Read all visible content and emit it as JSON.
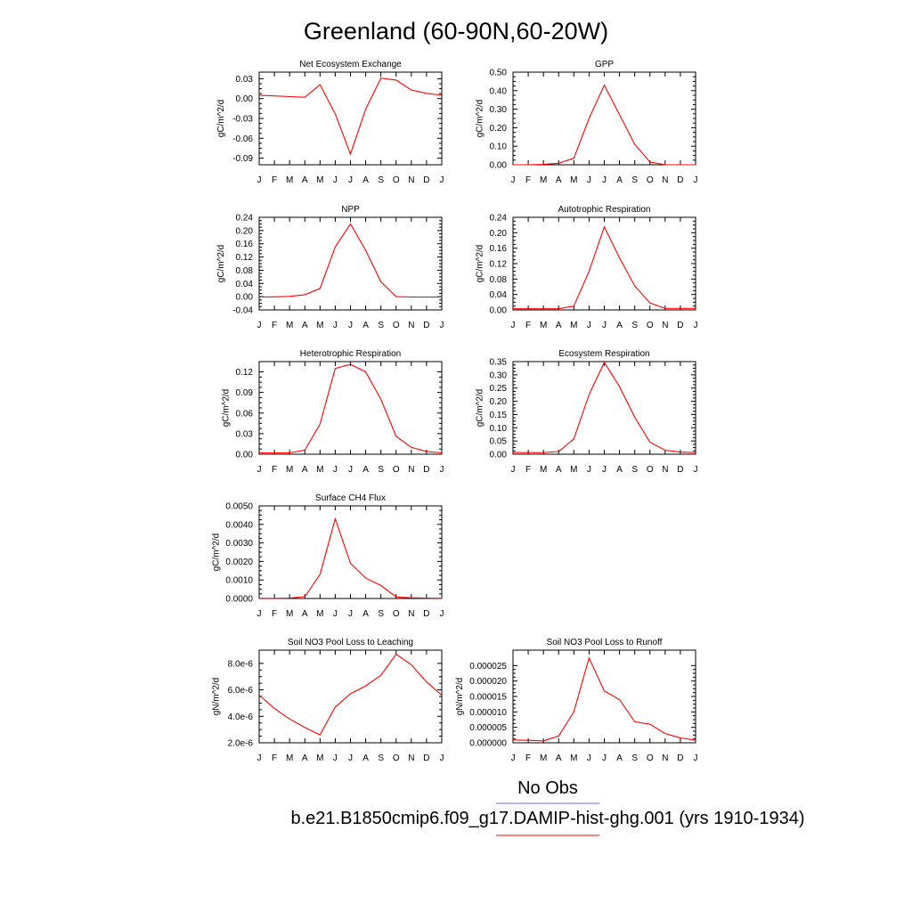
{
  "figure": {
    "title": "Greenland (60-90N,60-20W)"
  },
  "legend": {
    "entries": [
      {
        "label": "No Obs",
        "color": "#6b6bff"
      },
      {
        "label": "b.e21.B1850cmip6.f09_g17.DAMIP-hist-ghg.001 (yrs 1910-1934)",
        "color": "#ff0000"
      }
    ]
  },
  "series_color": "#ff0000",
  "chart_data": [
    {
      "type": "line",
      "title": "Net Ecosystem Exchange",
      "ylabel": "gC/m^2/d",
      "x": [
        "J",
        "F",
        "M",
        "A",
        "M",
        "J",
        "J",
        "A",
        "S",
        "O",
        "N",
        "D",
        "J"
      ],
      "values": [
        0.005,
        0.004,
        0.003,
        0.002,
        0.021,
        -0.023,
        -0.084,
        -0.016,
        0.031,
        0.028,
        0.013,
        0.008,
        0.005
      ],
      "ylim": [
        -0.1,
        0.04
      ],
      "yticks": [
        -0.09,
        -0.06,
        -0.03,
        0.0,
        0.03
      ],
      "ytick_labels": [
        "-0.09",
        "-0.06",
        "-0.03",
        "0.00",
        "0.03"
      ]
    },
    {
      "type": "line",
      "title": "GPP",
      "ylabel": "gC/m^2/d",
      "x": [
        "J",
        "F",
        "M",
        "A",
        "M",
        "J",
        "J",
        "A",
        "S",
        "O",
        "N",
        "D",
        "J"
      ],
      "values": [
        0.0,
        0.0,
        0.002,
        0.008,
        0.035,
        0.25,
        0.43,
        0.27,
        0.11,
        0.015,
        0.0,
        0.0,
        0.0
      ],
      "ylim": [
        0.0,
        0.5
      ],
      "yticks": [
        0.0,
        0.1,
        0.2,
        0.3,
        0.4,
        0.5
      ],
      "ytick_labels": [
        "0.00",
        "0.10",
        "0.20",
        "0.30",
        "0.40",
        "0.50"
      ]
    },
    {
      "type": "line",
      "title": "NPP",
      "ylabel": "gC/m^2/d",
      "x": [
        "J",
        "F",
        "M",
        "A",
        "M",
        "J",
        "J",
        "A",
        "S",
        "O",
        "N",
        "D",
        "J"
      ],
      "values": [
        -0.001,
        -0.0005,
        0.001,
        0.006,
        0.025,
        0.15,
        0.22,
        0.14,
        0.045,
        0.0,
        -0.001,
        -0.001,
        -0.001
      ],
      "ylim": [
        -0.04,
        0.24
      ],
      "yticks": [
        -0.04,
        0.0,
        0.04,
        0.08,
        0.12,
        0.16,
        0.2,
        0.24
      ],
      "ytick_labels": [
        "-0.04",
        "0.00",
        "0.04",
        "0.08",
        "0.12",
        "0.16",
        "0.20",
        "0.24"
      ]
    },
    {
      "type": "line",
      "title": "Autotrophic Respiration",
      "ylabel": "gC/m^2/d",
      "x": [
        "J",
        "F",
        "M",
        "A",
        "M",
        "J",
        "J",
        "A",
        "S",
        "O",
        "N",
        "D",
        "J"
      ],
      "values": [
        0.003,
        0.003,
        0.003,
        0.003,
        0.01,
        0.1,
        0.215,
        0.135,
        0.062,
        0.018,
        0.004,
        0.004,
        0.004
      ],
      "ylim": [
        0.0,
        0.24
      ],
      "yticks": [
        0.0,
        0.04,
        0.08,
        0.12,
        0.16,
        0.2,
        0.24
      ],
      "ytick_labels": [
        "0.00",
        "0.04",
        "0.08",
        "0.12",
        "0.16",
        "0.20",
        "0.24"
      ]
    },
    {
      "type": "line",
      "title": "Heterotrophic Respiration",
      "ylabel": "gC/m^2/d",
      "x": [
        "J",
        "F",
        "M",
        "A",
        "M",
        "J",
        "J",
        "A",
        "S",
        "O",
        "N",
        "D",
        "J"
      ],
      "values": [
        0.002,
        0.002,
        0.002,
        0.006,
        0.044,
        0.125,
        0.131,
        0.12,
        0.08,
        0.026,
        0.01,
        0.004,
        0.002
      ],
      "ylim": [
        0.0,
        0.135
      ],
      "yticks": [
        0.0,
        0.03,
        0.06,
        0.09,
        0.12
      ],
      "ytick_labels": [
        "0.00",
        "0.03",
        "0.06",
        "0.09",
        "0.12"
      ]
    },
    {
      "type": "line",
      "title": "Ecosystem Respiration",
      "ylabel": "gC/m^2/d",
      "x": [
        "J",
        "F",
        "M",
        "A",
        "M",
        "J",
        "J",
        "A",
        "S",
        "O",
        "N",
        "D",
        "J"
      ],
      "values": [
        0.006,
        0.006,
        0.006,
        0.01,
        0.058,
        0.225,
        0.347,
        0.255,
        0.14,
        0.045,
        0.015,
        0.008,
        0.006
      ],
      "ylim": [
        0.0,
        0.35
      ],
      "yticks": [
        0.0,
        0.05,
        0.1,
        0.15,
        0.2,
        0.25,
        0.3,
        0.35
      ],
      "ytick_labels": [
        "0.00",
        "0.05",
        "0.10",
        "0.15",
        "0.20",
        "0.25",
        "0.30",
        "0.35"
      ]
    },
    {
      "type": "line",
      "title": "Surface CH4 Flux",
      "ylabel": "gC/m^2/d",
      "x": [
        "J",
        "F",
        "M",
        "A",
        "M",
        "J",
        "J",
        "A",
        "S",
        "O",
        "N",
        "D",
        "J"
      ],
      "values": [
        1e-05,
        1e-05,
        2e-05,
        0.0001,
        0.0013,
        0.0043,
        0.0019,
        0.0011,
        0.0007,
        8e-05,
        4e-05,
        2e-05,
        1e-05
      ],
      "ylim": [
        0.0,
        0.005
      ],
      "yticks": [
        0.0,
        0.001,
        0.002,
        0.003,
        0.004,
        0.005
      ],
      "ytick_labels": [
        "0.0000",
        "0.0010",
        "0.0020",
        "0.0030",
        "0.0040",
        "0.0050"
      ]
    },
    {
      "type": "line",
      "title": "Soil NO3 Pool Loss to Leaching",
      "ylabel": "gN/m^2/d",
      "x": [
        "J",
        "F",
        "M",
        "A",
        "M",
        "J",
        "J",
        "A",
        "S",
        "O",
        "N",
        "D",
        "J"
      ],
      "values": [
        5.6e-06,
        4.6e-06,
        3.8e-06,
        3.15e-06,
        2.6e-06,
        4.7e-06,
        5.7e-06,
        6.3e-06,
        7.1e-06,
        8.7e-06,
        7.9e-06,
        6.6e-06,
        5.6e-06
      ],
      "ylim": [
        2e-06,
        9e-06
      ],
      "yticks": [
        2e-06,
        4e-06,
        6e-06,
        8e-06
      ],
      "ytick_labels": [
        "2.0e-6",
        "4.0e-6",
        "6.0e-6",
        "8.0e-6"
      ]
    },
    {
      "type": "line",
      "title": "Soil NO3 Pool Loss to Runoff",
      "ylabel": "gN/m^2/d",
      "x": [
        "J",
        "F",
        "M",
        "A",
        "M",
        "J",
        "J",
        "A",
        "S",
        "O",
        "N",
        "D",
        "J"
      ],
      "values": [
        9e-07,
        8e-07,
        6e-07,
        2.2e-06,
        1e-05,
        2.75e-05,
        1.68e-05,
        1.4e-05,
        6.8e-06,
        6e-06,
        3e-06,
        1.6e-06,
        8e-07
      ],
      "ylim": [
        0.0,
        3e-05
      ],
      "yticks": [
        0.0,
        5e-06,
        1e-05,
        1.5e-05,
        2e-05,
        2.5e-05
      ],
      "ytick_labels": [
        "0.000000",
        "0.000005",
        "0.000010",
        "0.000015",
        "0.000020",
        "0.000025"
      ]
    }
  ]
}
